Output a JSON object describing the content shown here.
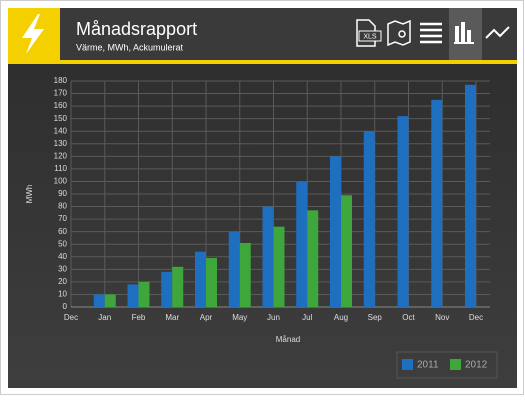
{
  "chart_data": {
    "type": "bar",
    "title": "Månadsrapport",
    "subtitle": "Värme, MWh, Ackumulerat",
    "categories": [
      "Dec",
      "Jan",
      "Feb",
      "Mar",
      "Apr",
      "May",
      "Jun",
      "Jul",
      "Aug",
      "Sep",
      "Oct",
      "Nov",
      "Dec"
    ],
    "series": [
      {
        "name": "2011",
        "color": "#1e6fc0",
        "values": [
          null,
          10,
          18,
          28,
          44,
          60,
          80,
          100,
          120,
          140,
          152,
          165,
          177
        ]
      },
      {
        "name": "2012",
        "color": "#3ea63a",
        "values": [
          null,
          10,
          20,
          32,
          39,
          51,
          64,
          77,
          89,
          null,
          null,
          null,
          null
        ]
      }
    ],
    "xlabel": "Månad",
    "ylabel": "MWh",
    "ylim": [
      0,
      180
    ],
    "yticks": [
      0,
      10,
      20,
      30,
      40,
      50,
      60,
      70,
      80,
      90,
      100,
      110,
      120,
      130,
      140,
      150,
      160,
      170,
      180
    ],
    "grid": true,
    "legend": "bottom-right"
  },
  "toolbar": {
    "xls_icon": "XLS"
  }
}
